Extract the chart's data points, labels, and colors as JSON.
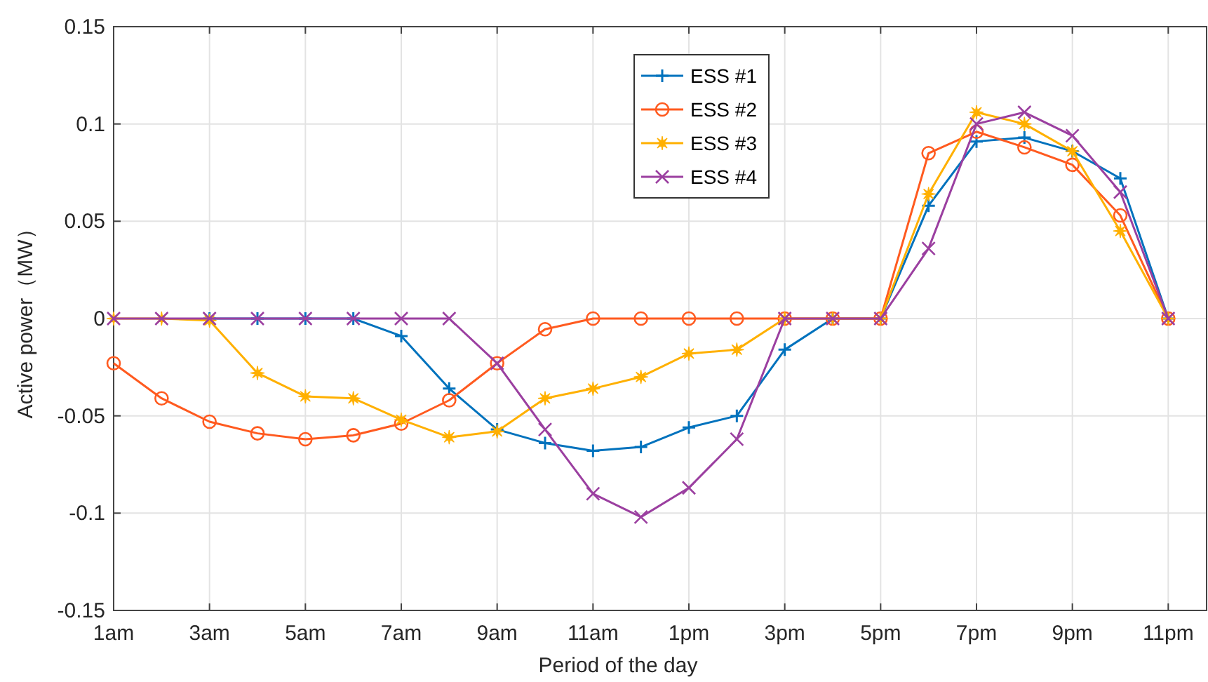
{
  "chart_data": {
    "type": "line",
    "xlabel": "Period of the day",
    "ylabel": "Active power（MW）",
    "categories": [
      "1am",
      null,
      "3am",
      null,
      "5am",
      null,
      "7am",
      null,
      "9am",
      null,
      "11am",
      null,
      "1pm",
      null,
      "3pm",
      null,
      "5pm",
      null,
      "7pm",
      null,
      "9pm",
      null,
      "11pm"
    ],
    "ylim": [
      -0.15,
      0.15
    ],
    "yticks": [
      -0.15,
      -0.1,
      -0.05,
      0,
      0.05,
      0.1,
      0.15
    ],
    "grid": true,
    "legend": "top",
    "line_style": "solid",
    "series": [
      {
        "name": "ESS #1",
        "color": "#0072bd",
        "marker": "cross",
        "values": [
          null,
          null,
          0,
          0,
          0,
          0,
          -0.009,
          -0.036,
          -0.057,
          -0.064,
          -0.068,
          -0.066,
          -0.056,
          -0.05,
          -0.016,
          0,
          0,
          0.058,
          0.091,
          0.093,
          0.086,
          0.072,
          0
        ]
      },
      {
        "name": "ESS #2",
        "color": "#ff5a1f",
        "marker": "circle",
        "values": [
          -0.023,
          -0.041,
          -0.053,
          -0.059,
          -0.062,
          -0.06,
          -0.054,
          -0.042,
          -0.023,
          -0.0055,
          0,
          0,
          0,
          0,
          0,
          0,
          0,
          0.085,
          0.096,
          0.088,
          0.079,
          0.053,
          0
        ]
      },
      {
        "name": "ESS #3",
        "color": "#ffb000",
        "marker": "star",
        "values": [
          0,
          0,
          -0.001,
          -0.028,
          -0.04,
          -0.041,
          -0.052,
          -0.061,
          -0.058,
          -0.041,
          -0.036,
          -0.03,
          -0.018,
          -0.016,
          0,
          0,
          0,
          0.064,
          0.106,
          0.1,
          0.086,
          0.045,
          0
        ]
      },
      {
        "name": "ESS #4",
        "color": "#9b3fa0",
        "marker": "x",
        "values": [
          0,
          0,
          0,
          0,
          0,
          0,
          0,
          0,
          -0.023,
          -0.057,
          -0.09,
          -0.102,
          -0.087,
          -0.062,
          0,
          0,
          0,
          0.036,
          0.1,
          0.106,
          0.094,
          0.065,
          0
        ]
      }
    ]
  }
}
